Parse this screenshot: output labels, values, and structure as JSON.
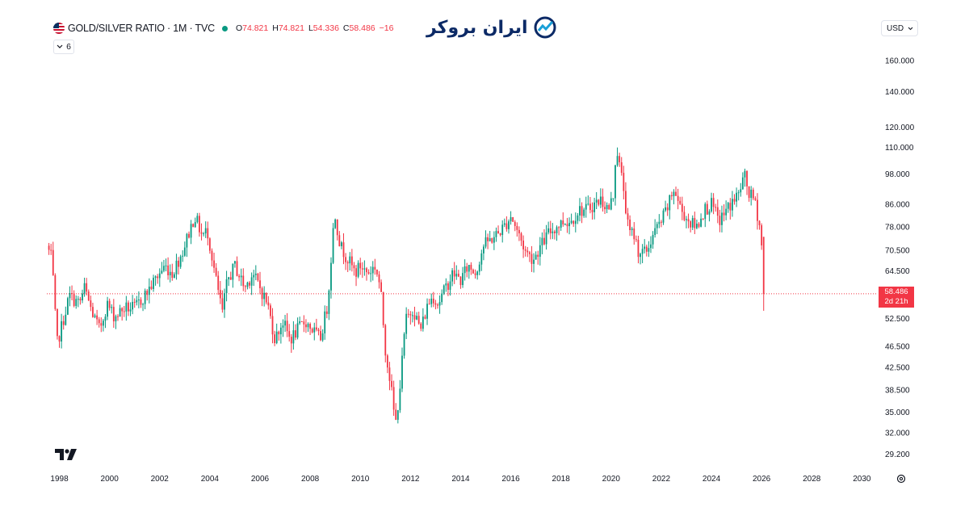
{
  "header": {
    "symbol": "GOLD/SILVER RATIO · 1M · TVC",
    "open_label": "O",
    "open": "74.821",
    "high_label": "H",
    "high": "74.821",
    "low_label": "L",
    "low": "54.336",
    "close_label": "C",
    "close": "58.486",
    "change": "−16",
    "indicator_count": "6",
    "currency": "USD"
  },
  "logo": {
    "text": "ایران بروکر"
  },
  "price_tag": {
    "price": "58.486",
    "countdown": "2d 21h"
  },
  "colors": {
    "up": "#089981",
    "down": "#f23645",
    "grid_text": "#131722",
    "last_price_line": "#f23645"
  },
  "icons": [
    "us-flag-icon",
    "status-dot-icon",
    "chevron-down-icon",
    "tradingview-logo-icon",
    "settings-gear-icon",
    "broker-logo-icon"
  ],
  "chart_data": {
    "type": "candlestick",
    "scale": "log",
    "y_ticks": [
      "160.000",
      "140.000",
      "120.000",
      "110.000",
      "98.000",
      "86.000",
      "78.000",
      "70.500",
      "64.500",
      "52.500",
      "46.500",
      "42.500",
      "38.500",
      "35.000",
      "32.000",
      "29.200"
    ],
    "x_ticks": [
      "1998",
      "2000",
      "2002",
      "2004",
      "2006",
      "2008",
      "2010",
      "2012",
      "2014",
      "2016",
      "2018",
      "2020",
      "2022",
      "2024",
      "2026",
      "2028",
      "2030"
    ],
    "x_range": [
      1997.5,
      2030.6
    ],
    "y_range": [
      27.5,
      175
    ],
    "last_price": 58.486,
    "path": [
      [
        1997.5,
        72
      ],
      [
        1997.7,
        68
      ],
      [
        1997.9,
        47
      ],
      [
        1998.1,
        51
      ],
      [
        1998.4,
        58
      ],
      [
        1998.8,
        56
      ],
      [
        1999.0,
        60
      ],
      [
        1999.3,
        54
      ],
      [
        1999.6,
        50
      ],
      [
        1999.9,
        56
      ],
      [
        2000.2,
        53
      ],
      [
        2000.6,
        55
      ],
      [
        2001.0,
        55
      ],
      [
        2001.4,
        58
      ],
      [
        2001.8,
        62
      ],
      [
        2002.2,
        66
      ],
      [
        2002.5,
        64
      ],
      [
        2002.9,
        70
      ],
      [
        2003.2,
        77
      ],
      [
        2003.4,
        82
      ],
      [
        2003.7,
        75
      ],
      [
        2003.9,
        77
      ],
      [
        2004.1,
        68
      ],
      [
        2004.3,
        60
      ],
      [
        2004.5,
        54
      ],
      [
        2004.7,
        62
      ],
      [
        2005.0,
        66
      ],
      [
        2005.4,
        60
      ],
      [
        2005.7,
        64
      ],
      [
        2006.0,
        60
      ],
      [
        2006.3,
        56
      ],
      [
        2006.6,
        48
      ],
      [
        2006.9,
        52
      ],
      [
        2007.2,
        48
      ],
      [
        2007.5,
        50
      ],
      [
        2007.8,
        52
      ],
      [
        2008.1,
        50
      ],
      [
        2008.4,
        48
      ],
      [
        2008.7,
        56
      ],
      [
        2008.9,
        76
      ],
      [
        2009.0,
        82
      ],
      [
        2009.2,
        72
      ],
      [
        2009.5,
        68
      ],
      [
        2009.8,
        64
      ],
      [
        2010.0,
        66
      ],
      [
        2010.3,
        64
      ],
      [
        2010.6,
        66
      ],
      [
        2010.8,
        60
      ],
      [
        2011.0,
        46
      ],
      [
        2011.2,
        40
      ],
      [
        2011.4,
        33
      ],
      [
        2011.6,
        40
      ],
      [
        2011.8,
        52
      ],
      [
        2012.1,
        55
      ],
      [
        2012.4,
        50
      ],
      [
        2012.7,
        56
      ],
      [
        2012.9,
        58
      ],
      [
        2013.1,
        56
      ],
      [
        2013.4,
        60
      ],
      [
        2013.7,
        64
      ],
      [
        2014.0,
        62
      ],
      [
        2014.3,
        66
      ],
      [
        2014.6,
        64
      ],
      [
        2014.9,
        72
      ],
      [
        2015.2,
        74
      ],
      [
        2015.5,
        76
      ],
      [
        2015.8,
        79
      ],
      [
        2016.0,
        82
      ],
      [
        2016.3,
        76
      ],
      [
        2016.6,
        70
      ],
      [
        2016.9,
        68
      ],
      [
        2017.2,
        72
      ],
      [
        2017.5,
        76
      ],
      [
        2017.8,
        78
      ],
      [
        2018.1,
        80
      ],
      [
        2018.4,
        80
      ],
      [
        2018.7,
        84
      ],
      [
        2019.0,
        84
      ],
      [
        2019.3,
        86
      ],
      [
        2019.6,
        88
      ],
      [
        2019.9,
        84
      ],
      [
        2020.1,
        90
      ],
      [
        2020.2,
        112
      ],
      [
        2020.3,
        104
      ],
      [
        2020.5,
        92
      ],
      [
        2020.7,
        76
      ],
      [
        2020.9,
        76
      ],
      [
        2021.1,
        70
      ],
      [
        2021.4,
        70
      ],
      [
        2021.7,
        76
      ],
      [
        2022.0,
        80
      ],
      [
        2022.3,
        86
      ],
      [
        2022.5,
        92
      ],
      [
        2022.8,
        84
      ],
      [
        2023.1,
        80
      ],
      [
        2023.4,
        78
      ],
      [
        2023.7,
        84
      ],
      [
        2024.0,
        86
      ],
      [
        2024.3,
        80
      ],
      [
        2024.6,
        84
      ],
      [
        2024.9,
        88
      ],
      [
        2025.1,
        90
      ],
      [
        2025.3,
        98
      ],
      [
        2025.5,
        90
      ],
      [
        2025.7,
        88
      ],
      [
        2025.9,
        80
      ],
      [
        2026.0,
        72
      ],
      [
        2026.05,
        58.5
      ]
    ]
  }
}
